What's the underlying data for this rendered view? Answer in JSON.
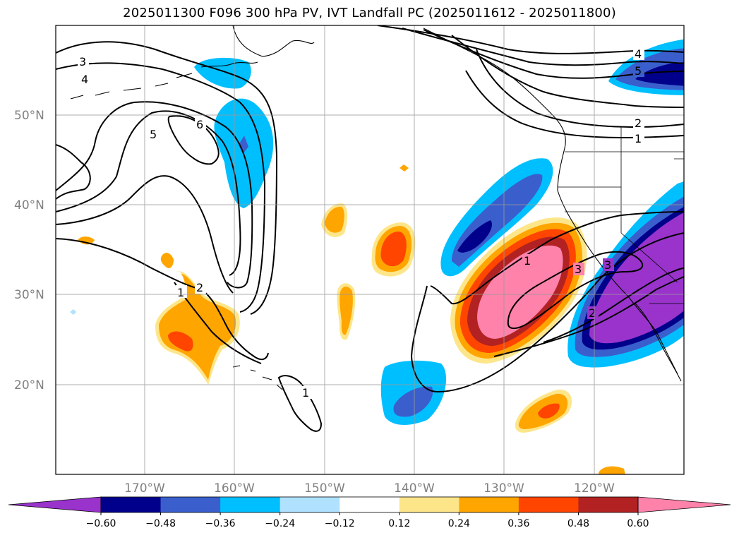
{
  "title": "2025011300 F096 300 hPa PV, IVT Landfall PC (2025011612 - 2025011800)",
  "latitude_labels": [
    "50°N",
    "40°N",
    "30°N",
    "20°N"
  ],
  "longitude_labels": [
    "170°W",
    "160°W",
    "150°W",
    "140°W",
    "130°W",
    "120°W"
  ],
  "colorbar": {
    "ticks": [
      "−0.60",
      "−0.48",
      "−0.36",
      "−0.24",
      "−0.12",
      "0.12",
      "0.24",
      "0.36",
      "0.48",
      "0.60"
    ],
    "colors": [
      "#9933cc",
      "#00008b",
      "#3a5fcd",
      "#00bfff",
      "#b0e2ff",
      "#ffffff",
      "#fde68a",
      "#ffa500",
      "#ff4500",
      "#b22222",
      "#ff82ab"
    ]
  },
  "contour_labels": {
    "w3": "3",
    "w4": "4",
    "w5": "5",
    "w6": "6",
    "w2": "2",
    "w1": "1",
    "hi1": "1",
    "c1": "1",
    "c3": "3",
    "c2": "2",
    "c3b": "3",
    "ne4": "4",
    "ne5": "5",
    "ne2": "2",
    "ne1": "1"
  }
}
